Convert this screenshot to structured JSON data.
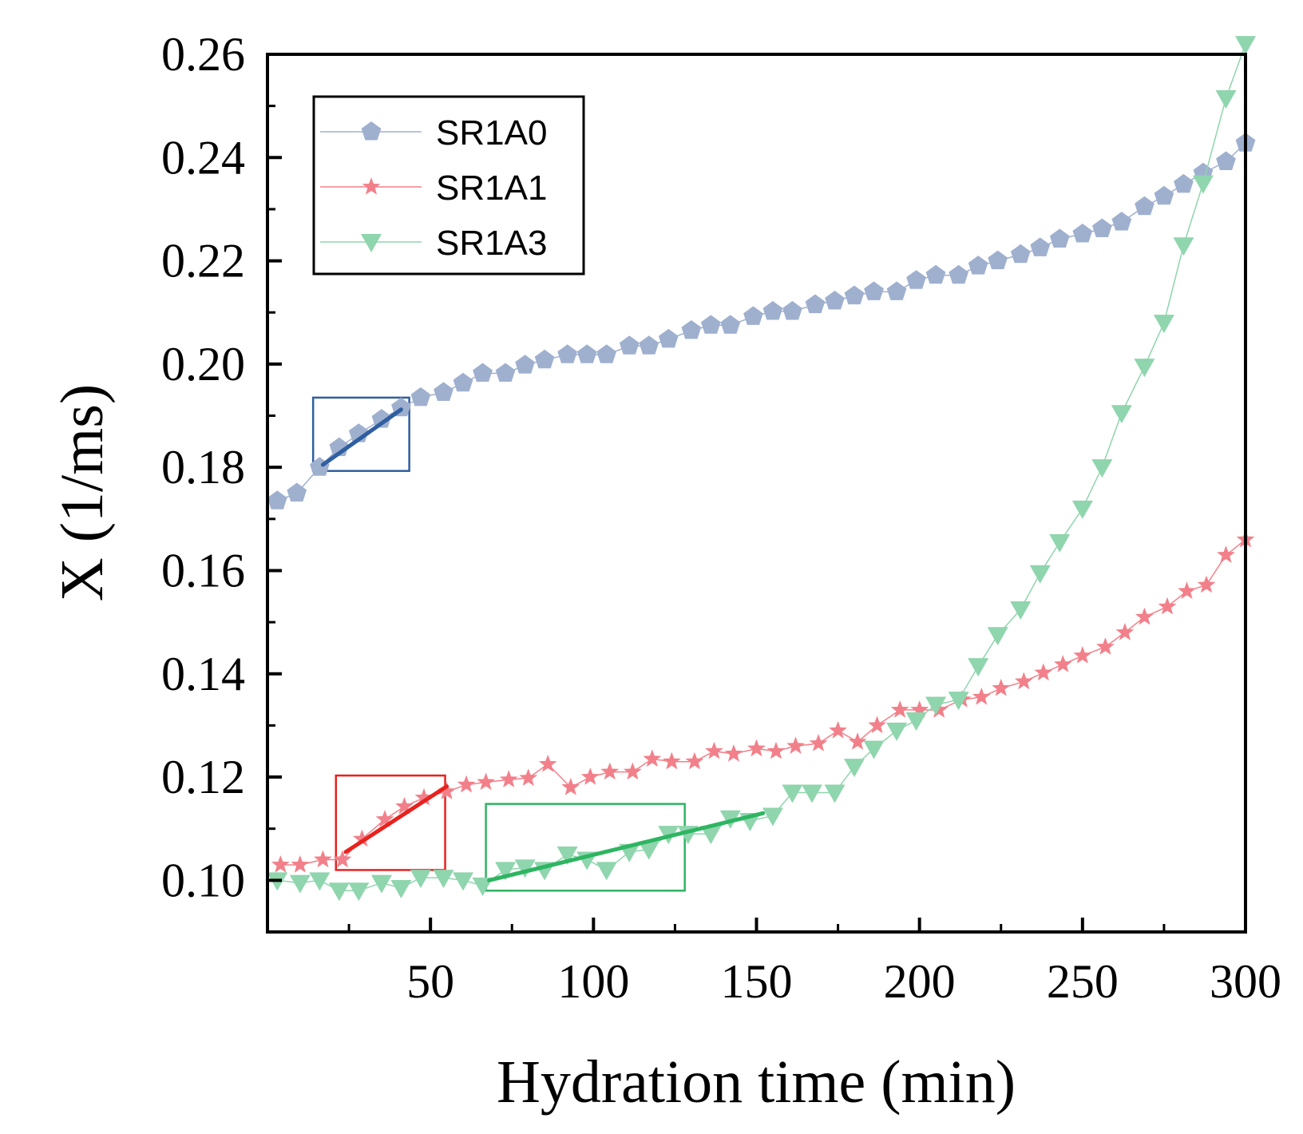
{
  "chart_data": {
    "type": "scatter",
    "title": "",
    "xlabel": "Hydration time (min)",
    "ylabel": "X (1/ms)",
    "xlim": [
      0,
      300
    ],
    "ylim": [
      0.09,
      0.26
    ],
    "x_ticks": [
      50,
      100,
      150,
      200,
      250,
      300
    ],
    "y_ticks": [
      0.1,
      0.12,
      0.14,
      0.16,
      0.18,
      0.2,
      0.22,
      0.24,
      0.26
    ],
    "x_tick_labels": [
      "50",
      "100",
      "150",
      "200",
      "250",
      "300"
    ],
    "y_tick_labels": [
      "0.10",
      "0.12",
      "0.14",
      "0.16",
      "0.18",
      "0.20",
      "0.22",
      "0.24",
      "0.26"
    ],
    "grid": false,
    "legend_position": "top-left",
    "series": [
      {
        "name": "SR1A0",
        "marker": "pentagon",
        "color": "#9fb0cf",
        "x": [
          3,
          9,
          16,
          22,
          28,
          35,
          41,
          47,
          54,
          60,
          66,
          73,
          79,
          85,
          92,
          98,
          104,
          111,
          117,
          123,
          130,
          136,
          142,
          149,
          155,
          161,
          168,
          174,
          180,
          186,
          193,
          199,
          205,
          212,
          218,
          224,
          231,
          237,
          243,
          250,
          256,
          262,
          269,
          275,
          281,
          287,
          294,
          300
        ],
        "y": [
          0.1735,
          0.175,
          0.18,
          0.1838,
          0.1865,
          0.1893,
          0.1915,
          0.1935,
          0.1945,
          0.1963,
          0.1982,
          0.1982,
          0.1998,
          0.2008,
          0.2018,
          0.2018,
          0.2018,
          0.2035,
          0.2035,
          0.2048,
          0.2065,
          0.2075,
          0.2075,
          0.2092,
          0.2102,
          0.2102,
          0.2115,
          0.2122,
          0.2132,
          0.214,
          0.214,
          0.2162,
          0.2172,
          0.2172,
          0.219,
          0.22,
          0.2212,
          0.2225,
          0.2242,
          0.2252,
          0.2262,
          0.2275,
          0.2305,
          0.2325,
          0.2348,
          0.237,
          0.2392,
          0.2428
        ]
      },
      {
        "name": "SR1A1",
        "marker": "star",
        "color": "#f2808a",
        "x": [
          4,
          10,
          17,
          23,
          29,
          36,
          42,
          48,
          55,
          61,
          67,
          74,
          80,
          86,
          93,
          99,
          105,
          112,
          118,
          124,
          131,
          137,
          143,
          150,
          156,
          162,
          169,
          175,
          181,
          187,
          194,
          200,
          206,
          213,
          219,
          225,
          232,
          238,
          244,
          250,
          257,
          263,
          269,
          276,
          282,
          288,
          294,
          300
        ],
        "y": [
          0.103,
          0.103,
          0.104,
          0.104,
          0.108,
          0.1118,
          0.1143,
          0.116,
          0.1172,
          0.1185,
          0.119,
          0.1195,
          0.1198,
          0.1225,
          0.118,
          0.12,
          0.121,
          0.121,
          0.1235,
          0.123,
          0.123,
          0.125,
          0.1245,
          0.1255,
          0.125,
          0.126,
          0.1265,
          0.129,
          0.1268,
          0.13,
          0.133,
          0.133,
          0.133,
          0.135,
          0.1355,
          0.1372,
          0.1385,
          0.1402,
          0.1418,
          0.1435,
          0.1452,
          0.148,
          0.151,
          0.153,
          0.156,
          0.1572,
          0.163,
          0.166
        ]
      },
      {
        "name": "SR1A3",
        "marker": "triangle-down",
        "color": "#8fd5ad",
        "x": [
          3,
          10,
          16,
          22,
          28,
          35,
          41,
          47,
          54,
          60,
          66,
          73,
          79,
          85,
          92,
          98,
          104,
          111,
          117,
          123,
          129,
          136,
          142,
          148,
          155,
          161,
          167,
          174,
          180,
          186,
          193,
          199,
          205,
          212,
          218,
          224,
          231,
          237,
          243,
          250,
          256,
          262,
          269,
          275,
          281,
          287,
          294,
          300
        ],
        "y": [
          0.1,
          0.0995,
          0.1,
          0.098,
          0.098,
          0.0995,
          0.0985,
          0.1005,
          0.1005,
          0.1,
          0.099,
          0.102,
          0.1025,
          0.102,
          0.105,
          0.104,
          0.102,
          0.1055,
          0.106,
          0.109,
          0.109,
          0.109,
          0.112,
          0.1115,
          0.1125,
          0.117,
          0.117,
          0.117,
          0.122,
          0.1255,
          0.129,
          0.131,
          0.134,
          0.135,
          0.1415,
          0.1475,
          0.1525,
          0.1595,
          0.1655,
          0.172,
          0.18,
          0.1905,
          0.1995,
          0.208,
          0.223,
          0.235,
          0.2515,
          0.262
        ]
      }
    ],
    "fit_lines": [
      {
        "series": "SR1A0",
        "color": "#2f5fa0",
        "x": [
          17,
          41
        ],
        "y": [
          0.1805,
          0.1912
        ]
      },
      {
        "series": "SR1A1",
        "color": "#e8221e",
        "x": [
          24,
          55
        ],
        "y": [
          0.1055,
          0.1182
        ]
      },
      {
        "series": "SR1A3",
        "color": "#2eb562",
        "x": [
          68,
          152
        ],
        "y": [
          0.1,
          0.113
        ]
      }
    ],
    "highlight_boxes": [
      {
        "series": "SR1A0",
        "color": "#2f5fa0",
        "x_range": [
          14,
          43.5
        ],
        "y_range": [
          0.1793,
          0.1935
        ]
      },
      {
        "series": "SR1A1",
        "color": "#e8221e",
        "x_range": [
          21,
          54.5
        ],
        "y_range": [
          0.102,
          0.1203
        ]
      },
      {
        "series": "SR1A3",
        "color": "#2eb562",
        "x_range": [
          67,
          128
        ],
        "y_range": [
          0.098,
          0.1148
        ]
      }
    ]
  }
}
